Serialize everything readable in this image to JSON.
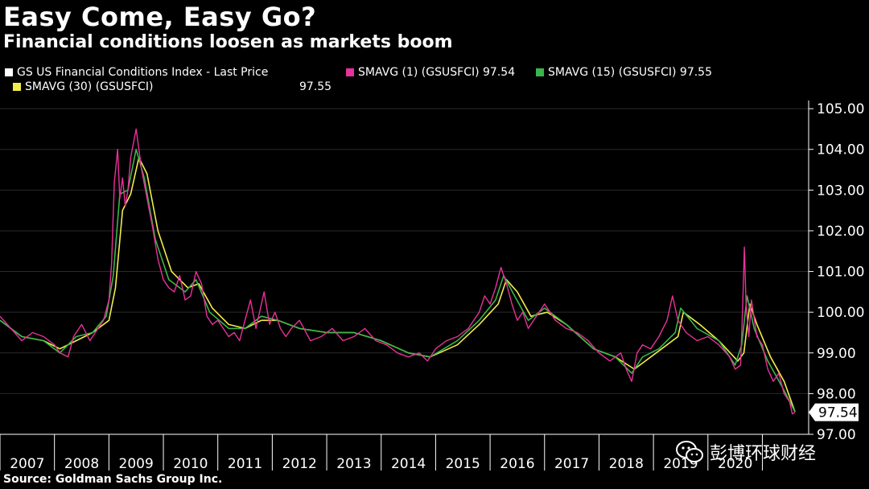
{
  "title": "Easy Come, Easy Go?",
  "subtitle": "Financial conditions loosen as markets boom",
  "source": "Source: Goldman Sachs Group Inc.",
  "watermark": {
    "text": "彭博环球财经",
    "icon": "wechat-icon"
  },
  "colors": {
    "background": "#000000",
    "last_price": "#ffffff",
    "smavg1": "#e8319a",
    "smavg15": "#3ab54a",
    "smavg30": "#f2ec4a",
    "grid": "#2a2a2a",
    "last_label_bg": "#ffffff",
    "last_label_text": "#000000"
  },
  "legend": [
    {
      "label": "GS US Financial Conditions Index - Last Price",
      "value": "",
      "color": "#ffffff"
    },
    {
      "label": "SMAVG (1) (GSUSFCI)",
      "value": "97.54",
      "color": "#e8319a"
    },
    {
      "label": "SMAVG (15) (GSUSFCI)",
      "value": "97.55",
      "color": "#3ab54a"
    },
    {
      "label": "SMAVG (30) (GSUSFCI)",
      "value": "97.55",
      "color": "#f2ec4a"
    }
  ],
  "chart_data": {
    "type": "line",
    "title": "Easy Come, Easy Go?",
    "subtitle": "Financial conditions loosen as markets boom",
    "xlabel": "",
    "ylabel": "",
    "xlim": [
      2006.5,
      2021.35
    ],
    "ylim": [
      97.0,
      105.2
    ],
    "y_ticks": [
      97.0,
      98.0,
      99.0,
      100.0,
      101.0,
      102.0,
      103.0,
      104.0,
      105.0
    ],
    "y_tick_labels": [
      "97.00",
      "98.00",
      "99.00",
      "100.00",
      "101.00",
      "102.00",
      "103.00",
      "104.00",
      "105.00"
    ],
    "x_tick_labels": [
      "2007",
      "2008",
      "2009",
      "2010",
      "2011",
      "2012",
      "2013",
      "2014",
      "2015",
      "2016",
      "2017",
      "2018",
      "2019",
      "2020"
    ],
    "x_label_positions": [
      2007,
      2008,
      2009,
      2010,
      2011,
      2012,
      2013,
      2014,
      2015,
      2016,
      2017,
      2018,
      2019,
      2020
    ],
    "grid": "horizontal",
    "last_value_label": "97.54",
    "last_value": 97.54,
    "series": [
      {
        "name": "SMAVG (1) (GSUSFCI)",
        "x": [
          2006.5,
          2006.7,
          2006.9,
          2007.1,
          2007.3,
          2007.5,
          2007.6,
          2007.75,
          2007.85,
          2008.0,
          2008.15,
          2008.3,
          2008.4,
          2008.5,
          2008.55,
          2008.6,
          2008.63,
          2008.66,
          2008.7,
          2008.75,
          2008.8,
          2008.85,
          2008.9,
          2009.0,
          2009.1,
          2009.2,
          2009.3,
          2009.4,
          2009.5,
          2009.6,
          2009.7,
          2009.8,
          2009.9,
          2010.0,
          2010.1,
          2010.2,
          2010.3,
          2010.4,
          2010.5,
          2010.6,
          2010.7,
          2010.8,
          2010.9,
          2011.0,
          2011.1,
          2011.2,
          2011.35,
          2011.45,
          2011.55,
          2011.65,
          2011.75,
          2011.85,
          2012.0,
          2012.2,
          2012.4,
          2012.6,
          2012.8,
          2013.0,
          2013.2,
          2013.4,
          2013.6,
          2013.8,
          2014.0,
          2014.2,
          2014.35,
          2014.5,
          2014.7,
          2014.9,
          2015.1,
          2015.3,
          2015.4,
          2015.5,
          2015.6,
          2015.7,
          2015.8,
          2015.9,
          2016.0,
          2016.1,
          2016.2,
          2016.3,
          2016.5,
          2016.7,
          2016.9,
          2017.1,
          2017.3,
          2017.5,
          2017.7,
          2017.9,
          2018.0,
          2018.1,
          2018.2,
          2018.3,
          2018.45,
          2018.6,
          2018.75,
          2018.85,
          2018.95,
          2019.1,
          2019.3,
          2019.5,
          2019.7,
          2019.9,
          2020.0,
          2020.1,
          2020.14,
          2020.17,
          2020.2,
          2020.25,
          2020.3,
          2020.4,
          2020.5,
          2020.6,
          2020.7,
          2020.8,
          2020.9,
          2021.0,
          2021.05,
          2021.1
        ],
        "values": [
          99.9,
          99.6,
          99.3,
          99.5,
          99.4,
          99.2,
          99.0,
          98.9,
          99.4,
          99.7,
          99.3,
          99.6,
          99.8,
          100.3,
          101.2,
          103.2,
          103.6,
          104.0,
          102.8,
          103.3,
          102.6,
          103.0,
          103.8,
          104.5,
          103.5,
          102.8,
          102.1,
          101.3,
          100.8,
          100.6,
          100.5,
          100.9,
          100.3,
          100.4,
          101.0,
          100.7,
          99.9,
          99.7,
          99.8,
          99.6,
          99.4,
          99.5,
          99.3,
          99.8,
          100.3,
          99.6,
          100.5,
          99.7,
          100.0,
          99.6,
          99.4,
          99.6,
          99.8,
          99.3,
          99.4,
          99.6,
          99.3,
          99.4,
          99.6,
          99.3,
          99.2,
          99.0,
          98.9,
          99.0,
          98.8,
          99.1,
          99.3,
          99.4,
          99.6,
          100.0,
          100.4,
          100.2,
          100.6,
          101.1,
          100.7,
          100.2,
          99.8,
          100.0,
          99.6,
          99.8,
          100.2,
          99.8,
          99.6,
          99.5,
          99.3,
          99.0,
          98.8,
          99.0,
          98.6,
          98.3,
          99.0,
          99.2,
          99.1,
          99.4,
          99.8,
          100.4,
          99.8,
          99.5,
          99.3,
          99.4,
          99.2,
          98.9,
          98.6,
          98.7,
          100.2,
          101.6,
          100.2,
          99.4,
          100.3,
          99.4,
          99.2,
          98.6,
          98.3,
          98.5,
          98.0,
          97.8,
          97.5,
          97.54
        ]
      },
      {
        "name": "SMAVG (15) (GSUSFCI)",
        "x": [
          2006.5,
          2006.9,
          2007.3,
          2007.6,
          2007.9,
          2008.2,
          2008.45,
          2008.58,
          2008.7,
          2008.85,
          2009.0,
          2009.15,
          2009.35,
          2009.6,
          2009.9,
          2010.1,
          2010.35,
          2010.7,
          2011.0,
          2011.3,
          2011.6,
          2012.0,
          2012.5,
          2013.0,
          2013.5,
          2014.0,
          2014.4,
          2014.9,
          2015.3,
          2015.6,
          2015.75,
          2015.95,
          2016.2,
          2016.5,
          2016.9,
          2017.4,
          2017.8,
          2018.1,
          2018.3,
          2018.6,
          2018.9,
          2019.0,
          2019.3,
          2019.7,
          2020.0,
          2020.12,
          2020.22,
          2020.35,
          2020.6,
          2020.85,
          2021.1
        ],
        "values": [
          99.8,
          99.4,
          99.3,
          99.0,
          99.4,
          99.5,
          99.9,
          100.9,
          102.9,
          103.0,
          104.0,
          103.3,
          101.8,
          100.8,
          100.5,
          100.8,
          100.0,
          99.6,
          99.6,
          99.9,
          99.8,
          99.6,
          99.5,
          99.5,
          99.3,
          99.0,
          98.9,
          99.3,
          99.8,
          100.3,
          100.9,
          100.4,
          99.8,
          100.1,
          99.7,
          99.1,
          98.9,
          98.5,
          98.9,
          99.1,
          99.5,
          100.1,
          99.6,
          99.3,
          98.7,
          99.2,
          100.4,
          99.6,
          98.8,
          98.2,
          97.55
        ]
      },
      {
        "name": "SMAVG (30) (GSUSFCI)",
        "x": [
          2006.5,
          2006.9,
          2007.3,
          2007.6,
          2007.9,
          2008.2,
          2008.5,
          2008.62,
          2008.75,
          2008.9,
          2009.05,
          2009.2,
          2009.4,
          2009.65,
          2009.95,
          2010.15,
          2010.4,
          2010.7,
          2011.0,
          2011.3,
          2011.6,
          2012.0,
          2012.5,
          2013.0,
          2013.5,
          2014.0,
          2014.4,
          2014.9,
          2015.3,
          2015.65,
          2015.8,
          2016.0,
          2016.25,
          2016.55,
          2016.9,
          2017.4,
          2017.8,
          2018.15,
          2018.35,
          2018.65,
          2018.95,
          2019.05,
          2019.35,
          2019.7,
          2020.05,
          2020.16,
          2020.27,
          2020.4,
          2020.65,
          2020.9,
          2021.1
        ],
        "values": [
          99.8,
          99.4,
          99.3,
          99.1,
          99.3,
          99.5,
          99.8,
          100.6,
          102.5,
          102.9,
          103.8,
          103.4,
          102.0,
          101.0,
          100.6,
          100.7,
          100.1,
          99.7,
          99.6,
          99.8,
          99.8,
          99.6,
          99.5,
          99.5,
          99.3,
          99.0,
          98.9,
          99.2,
          99.7,
          100.2,
          100.8,
          100.5,
          99.9,
          100.0,
          99.7,
          99.1,
          98.9,
          98.6,
          98.8,
          99.1,
          99.4,
          100.0,
          99.7,
          99.3,
          98.8,
          99.0,
          100.2,
          99.7,
          98.9,
          98.3,
          97.55
        ]
      }
    ]
  }
}
